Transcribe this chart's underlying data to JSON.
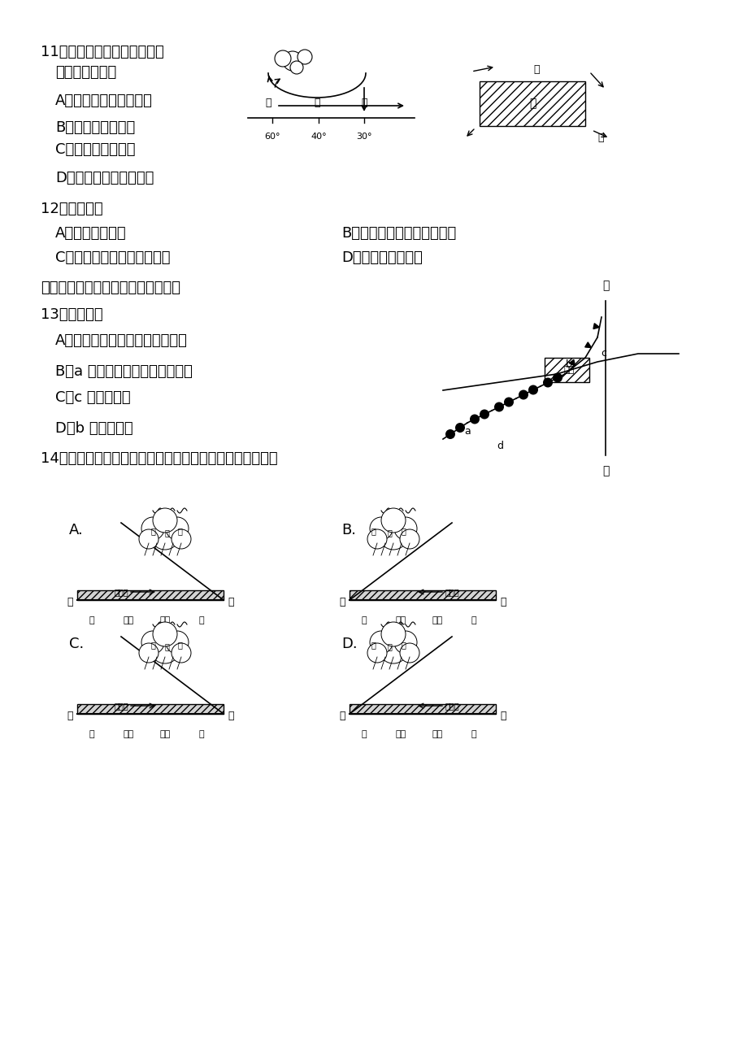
{
  "bg_color": "#ffffff",
  "title_font_size": 14,
  "body_font_size": 13,
  "q11_text": "11．图中气压带、风带名称的\n    判断，正确的是",
  "q11_A": "A．甲一副极地低气压带",
  "q11_B": "B．乙一盛行西风带",
  "q11_C": "C．丙一东北信风带",
  "q11_D": "D．丁一副热带高气压带",
  "q12_text": "12．图示季节",
  "q12_A": "A．北京昼短夜长",
  "q12_B": "B．墨累一达令盆地牧草枯黄",
  "q12_C": "C．东非高原动物大规模北迁",
  "q12_D": "D．南京盛行东南风",
  "intro_text": "下图为某天气系统图，回答下列题。",
  "q13_text": "13．此时图中",
  "q13_A": "A．城市被高气压控制，天气晴朗",
  "q13_B": "B．a 地大风降温，并可能有降水",
  "q13_C": "C．c 地刮西北风",
  "q13_D": "D．b 地雨过天晴",
  "q14_text": "14．图中沿甲乙线所作的天气系统垂直剖面示意图正确的是"
}
